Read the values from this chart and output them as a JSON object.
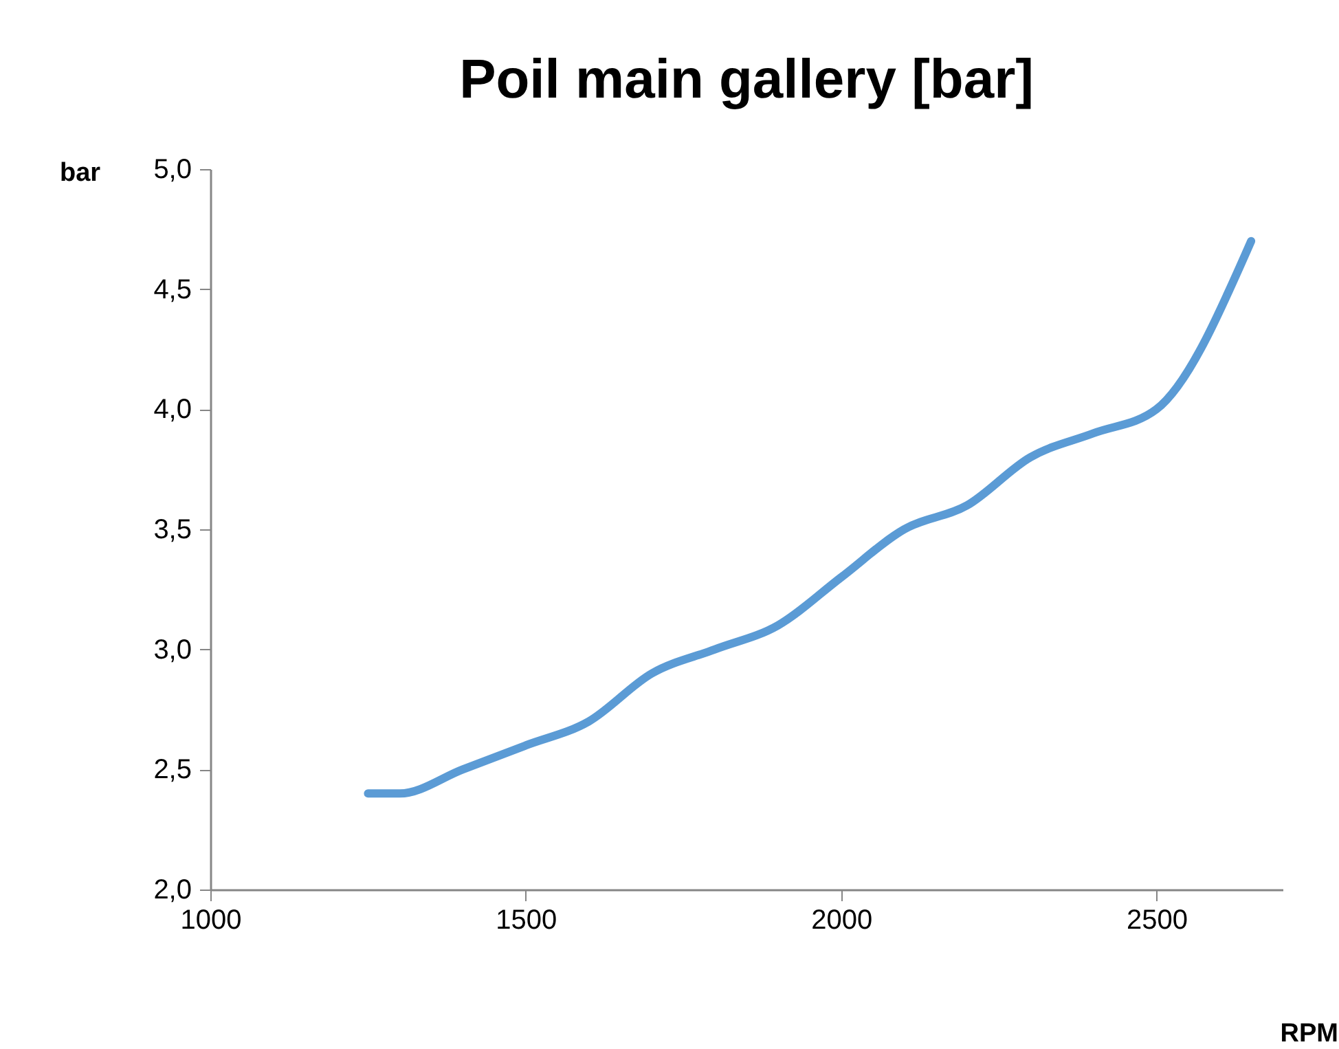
{
  "chart_data": {
    "type": "line",
    "title": "Poil main gallery [bar]",
    "xlabel": "RPM",
    "ylabel": "bar",
    "x": [
      1250,
      1300,
      1400,
      1500,
      1600,
      1700,
      1800,
      1900,
      2000,
      2100,
      2200,
      2300,
      2400,
      2500,
      2650
    ],
    "series": [
      {
        "color": "#5b9bd5",
        "values": [
          2.4,
          2.4,
          2.5,
          2.6,
          2.7,
          2.9,
          3.0,
          3.1,
          3.3,
          3.5,
          3.6,
          3.8,
          3.9,
          4.0,
          4.7
        ]
      }
    ],
    "xlim": [
      1000,
      2700
    ],
    "xticks": [
      1000,
      1500,
      2000,
      2500
    ],
    "ylim": [
      2.0,
      5.0
    ],
    "yticks": [
      {
        "value": 2.0,
        "label": "2,0"
      },
      {
        "value": 2.5,
        "label": "2,5"
      },
      {
        "value": 3.0,
        "label": "3,0"
      },
      {
        "value": 3.5,
        "label": "3,5"
      },
      {
        "value": 4.0,
        "label": "4,0"
      },
      {
        "value": 4.5,
        "label": "4,5"
      },
      {
        "value": 5.0,
        "label": "5,0"
      }
    ],
    "grid": false,
    "marker": "none",
    "line_style": "solid"
  }
}
